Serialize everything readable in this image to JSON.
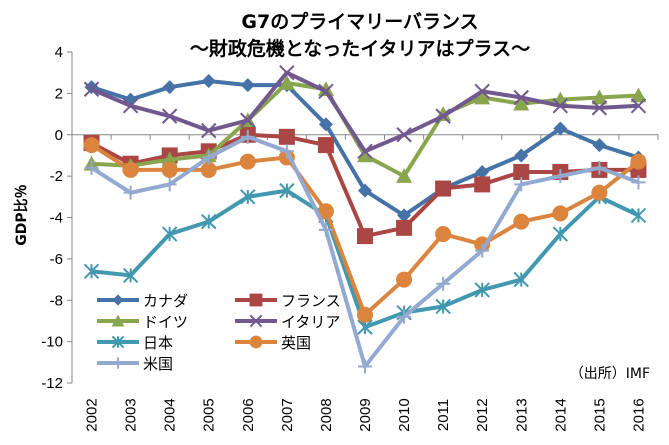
{
  "chart_data": {
    "type": "line",
    "title": "G7のプライマリーバランス",
    "subtitle": "～財政危機となったイタリアはプラス～",
    "xlabel": "",
    "ylabel": "GDP比％",
    "ylim": [
      -12,
      4
    ],
    "yticks": [
      4,
      2,
      0,
      -2,
      -4,
      -6,
      -8,
      -10,
      -12
    ],
    "categories": [
      "2002",
      "2003",
      "2004",
      "2005",
      "2006",
      "2007",
      "2008",
      "2009",
      "2010",
      "2011",
      "2012",
      "2013",
      "2014",
      "2015",
      "2016"
    ],
    "legend_position": "bottom-left",
    "grid": false,
    "source_note": "（出所）IMF",
    "series": [
      {
        "name": "カナダ",
        "marker": "diamond",
        "color": "#4572A7",
        "values": [
          2.3,
          1.7,
          2.3,
          2.6,
          2.4,
          2.4,
          0.5,
          -2.7,
          -3.9,
          -2.6,
          -1.8,
          -1.0,
          0.3,
          -0.5,
          -1.1
        ]
      },
      {
        "name": "フランス",
        "marker": "square",
        "color": "#AA4643",
        "values": [
          -0.4,
          -1.4,
          -1.0,
          -0.8,
          0.0,
          -0.1,
          -0.5,
          -4.9,
          -4.5,
          -2.6,
          -2.4,
          -1.8,
          -1.8,
          -1.7,
          -1.7
        ]
      },
      {
        "name": "ドイツ",
        "marker": "triangle",
        "color": "#89A54E",
        "values": [
          -1.4,
          -1.5,
          -1.2,
          -1.0,
          0.7,
          2.5,
          2.2,
          -1.0,
          -2.0,
          1.0,
          1.8,
          1.5,
          1.7,
          1.8,
          1.9
        ]
      },
      {
        "name": "イタリア",
        "marker": "x",
        "color": "#71588F",
        "values": [
          2.2,
          1.4,
          0.9,
          0.2,
          0.7,
          3.0,
          2.1,
          -0.8,
          0.0,
          0.9,
          2.1,
          1.8,
          1.4,
          1.3,
          1.4
        ]
      },
      {
        "name": "日本",
        "marker": "asterisk",
        "color": "#4198AF",
        "values": [
          -6.6,
          -6.8,
          -4.8,
          -4.2,
          -3.0,
          -2.7,
          -3.9,
          -9.3,
          -8.6,
          -8.3,
          -7.5,
          -7.0,
          -4.8,
          -3.0,
          -3.9
        ]
      },
      {
        "name": "英国",
        "marker": "circle",
        "color": "#DB843D",
        "values": [
          -0.5,
          -1.7,
          -1.7,
          -1.7,
          -1.3,
          -1.1,
          -3.7,
          -8.7,
          -7.0,
          -4.8,
          -5.3,
          -4.2,
          -3.8,
          -2.8,
          -1.3
        ]
      },
      {
        "name": "米国",
        "marker": "plus",
        "color": "#93A9CF",
        "values": [
          -1.6,
          -2.8,
          -2.4,
          -1.1,
          -0.1,
          -0.8,
          -4.6,
          -11.2,
          -8.8,
          -7.2,
          -5.6,
          -2.4,
          -2.0,
          -1.6,
          -2.3
        ]
      }
    ],
    "legend_order": [
      "カナダ",
      "フランス",
      "ドイツ",
      "イタリア",
      "日本",
      "英国",
      "米国"
    ]
  }
}
